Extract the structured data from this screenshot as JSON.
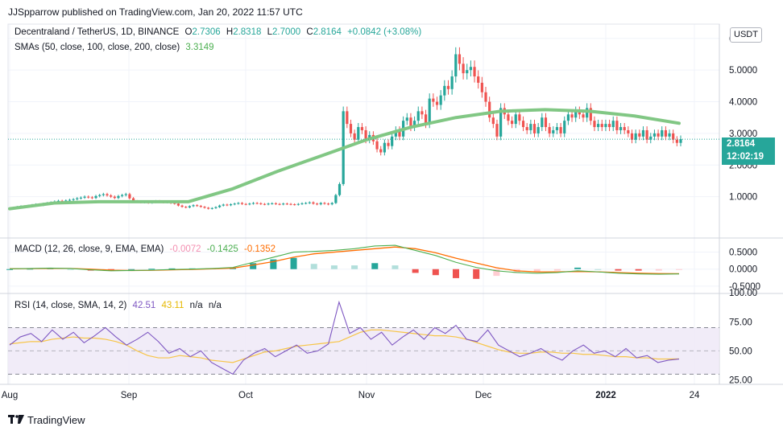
{
  "header": {
    "published": "JJSpparrow published on TradingView.com, Jan 20, 2022 11:57 UTC"
  },
  "legend_main": {
    "symbol": "Decentraland / TetherUS, 1D, BINANCE",
    "o_label": "O",
    "o": "2.7306",
    "h_label": "H",
    "h": "2.8318",
    "l_label": "L",
    "l": "2.7000",
    "c_label": "C",
    "c": "2.8164",
    "change": "+0.0842 (+3.08%)",
    "sma_label": "SMAs (50, close, 100, close, 200, close)",
    "sma_value": "3.3149"
  },
  "legend_macd": {
    "label": "MACD (12, 26, close, 9, EMA, EMA)",
    "hist": "-0.0072",
    "macd": "-0.1425",
    "signal": "-0.1352"
  },
  "legend_rsi": {
    "label": "RSI (14, close, SMA, 14, 2)",
    "rsi": "42.51",
    "ma": "43.11",
    "na1": "n/a",
    "na2": "n/a"
  },
  "price_scale": {
    "unit": "USDT",
    "current_price": "2.8164",
    "countdown": "12:02:19"
  },
  "brand": {
    "name": "TradingView"
  },
  "colors": {
    "up": "#26a69a",
    "down": "#ef5350",
    "sma": "#81c784",
    "macd_line": "#4caf50",
    "signal_line": "#ff6d00",
    "rsi_line": "#7e57c2",
    "rsi_ma": "#f7c548",
    "rsi_band": "#ede7f6"
  },
  "chart_data": [
    {
      "type": "candlestick",
      "title": "Decentraland / TetherUS, 1D, BINANCE",
      "x_tick_labels": [
        "Aug",
        "Sep",
        "Oct",
        "Nov",
        "Dec",
        "2022",
        "24"
      ],
      "y_tick_labels": [
        "1.0000",
        "2.0000",
        "3.0000",
        "4.0000",
        "5.0000",
        "6.0000"
      ],
      "ylim": [
        0,
        6.3
      ],
      "closes": [
        0.63,
        0.66,
        0.68,
        0.7,
        0.69,
        0.72,
        0.74,
        0.76,
        0.73,
        0.78,
        0.8,
        0.82,
        0.85,
        0.87,
        0.84,
        0.88,
        0.9,
        0.92,
        0.95,
        0.97,
        1.0,
        0.98,
        0.96,
        1.02,
        1.05,
        1.08,
        1.04,
        1.0,
        0.96,
        1.02,
        1.05,
        1.08,
        0.95,
        0.86,
        0.84,
        0.82,
        0.85,
        0.81,
        0.83,
        0.86,
        0.84,
        0.82,
        0.85,
        0.8,
        0.78,
        0.72,
        0.68,
        0.66,
        0.7,
        0.73,
        0.71,
        0.68,
        0.65,
        0.62,
        0.64,
        0.67,
        0.72,
        0.75,
        0.73,
        0.76,
        0.78,
        0.8,
        0.77,
        0.76,
        0.78,
        0.8,
        0.79,
        0.77,
        0.76,
        0.78,
        0.79,
        0.77,
        0.76,
        0.78,
        0.77,
        0.76,
        0.75,
        0.77,
        0.79,
        0.8,
        0.82,
        0.78,
        0.76,
        0.8,
        0.78,
        0.76,
        0.8,
        1.05,
        1.4,
        3.7,
        3.3,
        3.0,
        2.8,
        3.2,
        3.1,
        2.8,
        2.95,
        2.75,
        2.5,
        2.4,
        2.7,
        2.6,
        2.9,
        3.1,
        2.9,
        3.4,
        3.5,
        3.2,
        3.4,
        3.7,
        3.6,
        3.3,
        4.1,
        4.0,
        3.9,
        4.2,
        4.5,
        4.4,
        4.8,
        5.5,
        5.2,
        4.9,
        5.0,
        5.1,
        4.8,
        4.6,
        4.3,
        4.0,
        3.5,
        3.3,
        2.9,
        3.8,
        3.6,
        3.4,
        3.3,
        3.6,
        3.4,
        3.2,
        3.1,
        3.3,
        3.0,
        3.2,
        3.5,
        3.2,
        3.0,
        3.1,
        3.2,
        3.0,
        3.4,
        3.6,
        3.5,
        3.7,
        3.6,
        3.5,
        3.8,
        3.4,
        3.2,
        3.3,
        3.2,
        3.3,
        3.2,
        3.4,
        3.1,
        3.2,
        3.1,
        3.0,
        2.8,
        3.0,
        2.9,
        3.1,
        2.8,
        2.9,
        3.0,
        2.9,
        3.1,
        2.9,
        3.0,
        2.8,
        2.7,
        2.82
      ],
      "sma": [
        0.62,
        0.8,
        0.84,
        0.84,
        0.84,
        1.25,
        1.8,
        2.3,
        2.8,
        3.2,
        3.5,
        3.7,
        3.75,
        3.7,
        3.55,
        3.32
      ]
    },
    {
      "type": "macd",
      "y_tick_labels": [
        "0.5000",
        "0.0000",
        "-0.5000"
      ],
      "ylim": [
        -0.62,
        0.82
      ],
      "macd_line": [
        0.01,
        0.02,
        0.03,
        0.02,
        -0.02,
        -0.05,
        -0.04,
        -0.03,
        -0.01,
        0.0,
        0.02,
        0.05,
        0.2,
        0.35,
        0.5,
        0.52,
        0.55,
        0.6,
        0.68,
        0.7,
        0.55,
        0.4,
        0.2,
        0.05,
        -0.05,
        -0.1,
        -0.12,
        -0.1,
        -0.05,
        -0.08,
        -0.12,
        -0.14,
        -0.15,
        -0.14
      ],
      "signal_line": [
        0.01,
        0.015,
        0.02,
        0.02,
        0.0,
        -0.03,
        -0.04,
        -0.035,
        -0.02,
        -0.01,
        0.01,
        0.03,
        0.12,
        0.22,
        0.35,
        0.45,
        0.5,
        0.55,
        0.6,
        0.65,
        0.6,
        0.48,
        0.32,
        0.18,
        0.04,
        -0.05,
        -0.08,
        -0.08,
        -0.07,
        -0.08,
        -0.1,
        -0.12,
        -0.13,
        -0.135
      ]
    },
    {
      "type": "rsi",
      "y_tick_labels": [
        "100.00",
        "75.00",
        "50.00",
        "25.00"
      ],
      "ylim": [
        24,
        98
      ],
      "band": [
        30,
        70
      ],
      "rsi": [
        55,
        62,
        65,
        58,
        68,
        60,
        66,
        57,
        63,
        70,
        62,
        55,
        60,
        66,
        58,
        48,
        52,
        45,
        50,
        40,
        35,
        30,
        42,
        48,
        52,
        45,
        50,
        55,
        48,
        50,
        56,
        92,
        65,
        70,
        60,
        66,
        55,
        62,
        68,
        60,
        70,
        65,
        72,
        60,
        58,
        68,
        55,
        50,
        45,
        48,
        52,
        46,
        42,
        50,
        55,
        48,
        50,
        45,
        52,
        44,
        46,
        40,
        42,
        43
      ],
      "rsi_ma": [
        56,
        57,
        58,
        58,
        60,
        61,
        62,
        61,
        61,
        60,
        58,
        55,
        50,
        46,
        44,
        44,
        46,
        45,
        44,
        42,
        41,
        40,
        43,
        46,
        49,
        50,
        52,
        54,
        55,
        56,
        57,
        58,
        62,
        66,
        68,
        68,
        67,
        66,
        65,
        64,
        63,
        63,
        62,
        60,
        57,
        54,
        51,
        49,
        48,
        48,
        49,
        49,
        48,
        48,
        47,
        47,
        46,
        45,
        45,
        44,
        44,
        43,
        43,
        43.1
      ]
    }
  ]
}
